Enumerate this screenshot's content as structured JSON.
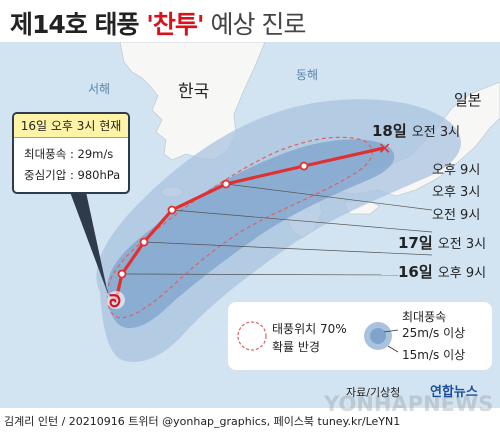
{
  "title": {
    "main": "제14호 태풍 ",
    "name": "'찬투'",
    "rest": " 예상 진로"
  },
  "labels": {
    "west_sea": "서해",
    "east_sea": "동해",
    "korea": "한국",
    "japan": "일본"
  },
  "callout": {
    "title": "16일 오후 3시 현재",
    "max_wind": "최대풍속 : 29m/s",
    "pressure": "중심기압 : 980hPa"
  },
  "forecast_points": [
    {
      "day": "18일",
      "time": "오전 3시"
    },
    {
      "day": "",
      "time": "오후 9시"
    },
    {
      "day": "",
      "time": "오후 3시"
    },
    {
      "day": "",
      "time": "오전 9시"
    },
    {
      "day": "17일",
      "time": "오전 3시"
    },
    {
      "day": "16일",
      "time": "오후 9시"
    }
  ],
  "legend": {
    "probability": "태풍위치 70%",
    "probability2": "확률 반경",
    "max_wind_title": "최대풍속",
    "wind_strong": "25m/s 이상",
    "wind_weak": "15m/s 이상"
  },
  "source": "자료/기상청",
  "brand": "연합뉴스",
  "watermark": "YONHAPNEWS",
  "footer": "김계리 인턴 / 20210916 트위터 @yonhap_graphics, 페이스북 tuney.kr/LeYN1",
  "colors": {
    "track": "#e03030",
    "land": "#f7f7f5",
    "sea": "#d2e4f1",
    "wind_strong": "#7fa3cc",
    "wind_weak": "#a9c3df"
  }
}
